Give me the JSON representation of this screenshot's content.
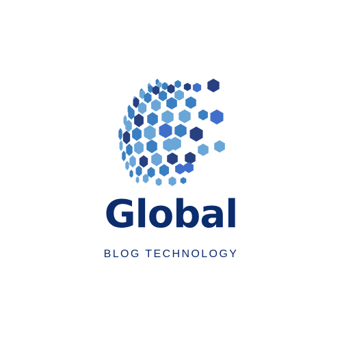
{
  "brand": {
    "name": "Global",
    "tagline": "BLOG TECHNOLOGY"
  },
  "logo": {
    "icon": "hexagon-globe-icon"
  },
  "colors": {
    "background": "#ffffff",
    "text": "#0b2d6e",
    "hex_dark": "#27407f",
    "hex_mid": "#3a7fc1",
    "hex_light": "#6aa6d8",
    "hex_bright": "#3f6fca"
  }
}
